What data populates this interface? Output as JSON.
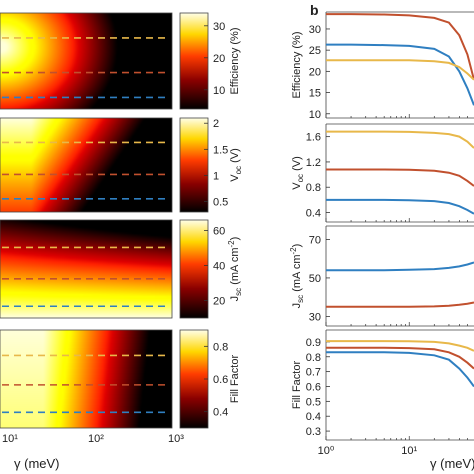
{
  "figure": {
    "panel_b_label": "b",
    "x_axis_label": "γ (meV)",
    "x_axis_label_b": "γ (meV)"
  },
  "chart_data": [
    {
      "type": "heatmap",
      "panel": "a-1",
      "colorbar_label": "Efficiency (%)",
      "colorbar_ticks": [
        "30",
        "20",
        "10"
      ],
      "colorbar_range": [
        4,
        34
      ],
      "colormap": "hot",
      "dashed_lines": [
        {
          "color": "#e8b84a"
        },
        {
          "color": "#c1502e"
        },
        {
          "color": "#2f7fc1"
        }
      ]
    },
    {
      "type": "heatmap",
      "panel": "a-2",
      "colorbar_label": "V_oc (V)",
      "colorbar_ticks": [
        "2",
        "1.5",
        "1",
        "0.5"
      ],
      "colorbar_range": [
        0.3,
        2.1
      ],
      "colormap": "hot",
      "dashed_lines": [
        {
          "color": "#e8b84a"
        },
        {
          "color": "#c1502e"
        },
        {
          "color": "#2f7fc1"
        }
      ]
    },
    {
      "type": "heatmap",
      "panel": "a-3",
      "colorbar_label": "J_sc (mA cm^-2)",
      "colorbar_ticks": [
        "60",
        "40",
        "20"
      ],
      "colorbar_range": [
        10,
        66
      ],
      "colormap": "hot",
      "dashed_lines": [
        {
          "color": "#e8b84a"
        },
        {
          "color": "#c1502e"
        },
        {
          "color": "#2f7fc1"
        }
      ]
    },
    {
      "type": "heatmap",
      "panel": "a-4",
      "colorbar_label": "Fill Factor",
      "colorbar_ticks": [
        "0.8",
        "0.6",
        "0.4"
      ],
      "colorbar_range": [
        0.3,
        0.9
      ],
      "colormap": "hot",
      "dashed_lines": [
        {
          "color": "#e8b84a"
        },
        {
          "color": "#c1502e"
        },
        {
          "color": "#2f7fc1"
        }
      ],
      "x_ticks": [
        "10¹",
        "10²",
        "10³"
      ]
    },
    {
      "type": "line",
      "panel": "b-1",
      "ylabel": "Efficiency (%)",
      "ylim": [
        9,
        34
      ],
      "yticks": [
        "30",
        "25",
        "20",
        "15",
        "10"
      ],
      "x": [
        1,
        2,
        5,
        10,
        20,
        30,
        40,
        50,
        60
      ],
      "series": [
        {
          "color": "#c1502e",
          "values": [
            33.5,
            33.5,
            33.4,
            33.2,
            32.6,
            31.5,
            28.5,
            24,
            18
          ]
        },
        {
          "color": "#2f7fc1",
          "values": [
            26.3,
            26.3,
            26.2,
            26,
            25.3,
            23.5,
            20,
            16,
            12
          ]
        },
        {
          "color": "#e8b84a",
          "values": [
            22.6,
            22.6,
            22.6,
            22.6,
            22.4,
            22,
            21,
            19.5,
            18
          ]
        }
      ]
    },
    {
      "type": "line",
      "panel": "b-2",
      "ylabel": "V_oc (V)",
      "ylim": [
        0.25,
        1.8
      ],
      "yticks": [
        "1.6",
        "1.2",
        "0.8",
        "0.4"
      ],
      "x": [
        1,
        2,
        5,
        10,
        20,
        30,
        40,
        50,
        60
      ],
      "series": [
        {
          "color": "#e8b84a",
          "values": [
            1.68,
            1.68,
            1.68,
            1.675,
            1.66,
            1.64,
            1.6,
            1.52,
            1.42
          ]
        },
        {
          "color": "#c1502e",
          "values": [
            1.08,
            1.08,
            1.08,
            1.075,
            1.06,
            1.03,
            0.98,
            0.9,
            0.82
          ]
        },
        {
          "color": "#2f7fc1",
          "values": [
            0.6,
            0.6,
            0.6,
            0.595,
            0.58,
            0.55,
            0.5,
            0.44,
            0.38
          ]
        }
      ]
    },
    {
      "type": "line",
      "panel": "b-3",
      "ylabel": "J_sc (mA cm^-2)",
      "ylim": [
        25,
        77
      ],
      "yticks": [
        "70",
        "50",
        "30"
      ],
      "x": [
        1,
        2,
        5,
        10,
        20,
        30,
        40,
        50,
        60
      ],
      "series": [
        {
          "color": "#2f7fc1",
          "values": [
            54,
            54,
            54,
            54.2,
            54.6,
            55.2,
            56,
            57,
            58
          ]
        },
        {
          "color": "#c1502e",
          "values": [
            35,
            35,
            35,
            35,
            35.2,
            35.5,
            36,
            36.6,
            37.2
          ]
        }
      ]
    },
    {
      "type": "line",
      "panel": "b-4",
      "ylabel": "Fill Factor",
      "ylim": [
        0.24,
        0.98
      ],
      "yticks": [
        "0.9",
        "0.8",
        "0.7",
        "0.6",
        "0.5",
        "0.4",
        "0.3"
      ],
      "x": [
        1,
        2,
        5,
        10,
        20,
        30,
        40,
        50,
        60
      ],
      "xlim": [
        1,
        60
      ],
      "xticks": [
        "10⁰",
        "10¹"
      ],
      "series": [
        {
          "color": "#e8b84a",
          "values": [
            0.905,
            0.905,
            0.905,
            0.904,
            0.9,
            0.89,
            0.875,
            0.86,
            0.84
          ]
        },
        {
          "color": "#c1502e",
          "values": [
            0.86,
            0.86,
            0.86,
            0.858,
            0.85,
            0.83,
            0.8,
            0.76,
            0.72
          ]
        },
        {
          "color": "#2f7fc1",
          "values": [
            0.83,
            0.83,
            0.83,
            0.826,
            0.81,
            0.78,
            0.72,
            0.66,
            0.6
          ]
        }
      ]
    }
  ]
}
